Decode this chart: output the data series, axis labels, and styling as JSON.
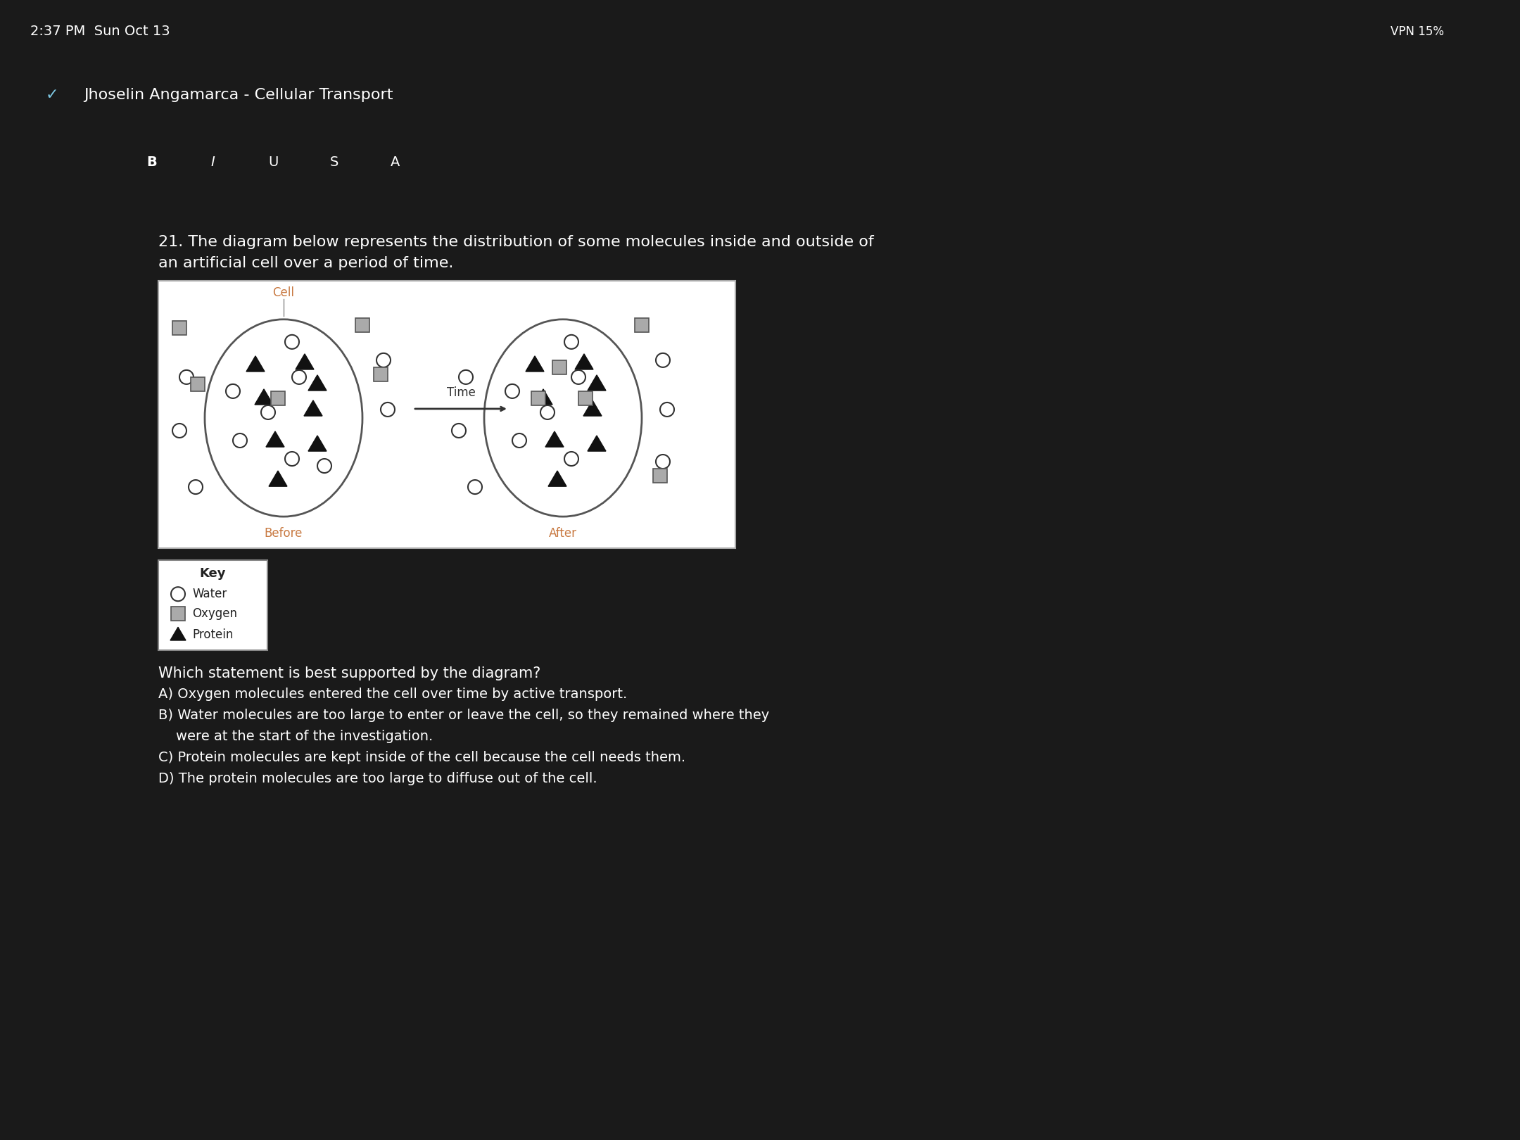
{
  "bg_color": "#1a1a1a",
  "toolbar_color": "#333333",
  "header_color": "#2d2d2d",
  "status_color": "#2d2d2d",
  "white": "#ffffff",
  "cell_label_color": "#c87941",
  "before_label_color": "#c87941",
  "after_label_color": "#c87941",
  "triangle_color": "#111111",
  "square_color": "#aaaaaa",
  "square_edge": "#555555",
  "circle_facecolor": "#ffffff",
  "circle_edgecolor": "#333333",
  "diagram_facecolor": "#ffffff",
  "diagram_edgecolor": "#aaaaaa",
  "cell_edgecolor": "#555555",
  "key_facecolor": "#ffffff",
  "key_edgecolor": "#888888",
  "text_color_white": "#ffffff",
  "text_color_dark": "#222222",
  "status_text": "2:37 PM  Sun Oct 13",
  "header_text": "Jhoselin Angamarca - Cellular Transport",
  "q_line1": "21. The diagram below represents the distribution of some molecules inside and outside of",
  "q_line2": "an artificial cell over a period of time.",
  "cell_label": "Cell",
  "before_label": "Before",
  "after_label": "After",
  "time_label": "Time",
  "key_title": "Key",
  "key_water": "Water",
  "key_oxygen": "Oxygen",
  "key_protein": "Protein",
  "prompt": "Which statement is best supported by the diagram?",
  "answer_a": "A) Oxygen molecules entered the cell over time by active transport.",
  "answer_b1": "B) Water molecules are too large to enter or leave the cell, so they remained where they",
  "answer_b2": "    were at the start of the investigation.",
  "answer_c": "C) Protein molecules are kept inside of the cell because the cell needs them.",
  "answer_d": "D) The protein molecules are too large to diffuse out of the cell."
}
